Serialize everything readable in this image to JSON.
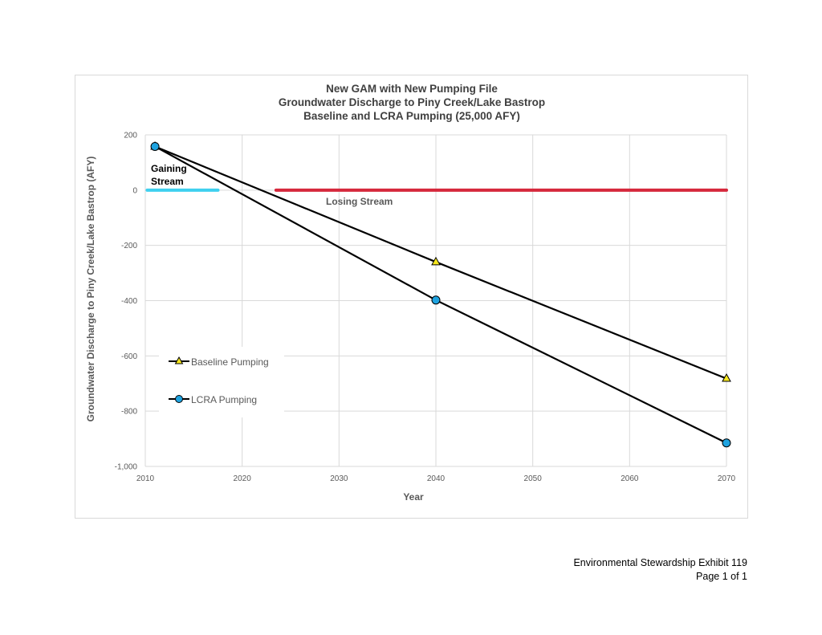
{
  "chart_data": {
    "type": "line",
    "title_lines": [
      "New GAM with New Pumping File",
      "Groundwater Discharge to Piny Creek/Lake Bastrop",
      "Baseline and LCRA Pumping (25,000 AFY)"
    ],
    "xlabel": "Year",
    "ylabel": "Groundwater Discharge to Piny Creek/Lake Bastrop (AFY)",
    "xlim": [
      2010,
      2070
    ],
    "ylim": [
      -1000,
      200
    ],
    "x_ticks": [
      "2010",
      "2020",
      "2030",
      "2040",
      "2050",
      "2060",
      "2070"
    ],
    "y_ticks": [
      "200",
      "0",
      "-200",
      "-400",
      "-600",
      "-800",
      "-1,000"
    ],
    "grid": true,
    "legend_position": "lower-left",
    "series": [
      {
        "name": "Baseline Pumping",
        "marker": "triangle",
        "marker_color": "#f5e61e",
        "line_color": "#000000",
        "x": [
          2011,
          2040,
          2070
        ],
        "y": [
          158,
          -260,
          -682
        ]
      },
      {
        "name": "LCRA Pumping",
        "marker": "circle",
        "marker_color": "#1fa3e0",
        "line_color": "#000000",
        "x": [
          2011,
          2040,
          2070
        ],
        "y": [
          158,
          -398,
          -915
        ]
      }
    ],
    "annotations": [
      {
        "text_lines": [
          "Gaining",
          "Stream"
        ],
        "color": "#000000",
        "bar_color": "#3fd0ef",
        "bar_x": [
          2010.2,
          2017.5
        ],
        "bar_y": 0
      },
      {
        "text_lines": [
          "Losing Stream"
        ],
        "color": "#595959",
        "bar_color": "#d6283c",
        "bar_x": [
          2023.5,
          2070
        ],
        "bar_y": 0
      }
    ]
  },
  "footer": {
    "line1": "Environmental Stewardship Exhibit 119",
    "line2": "Page 1 of 1"
  }
}
